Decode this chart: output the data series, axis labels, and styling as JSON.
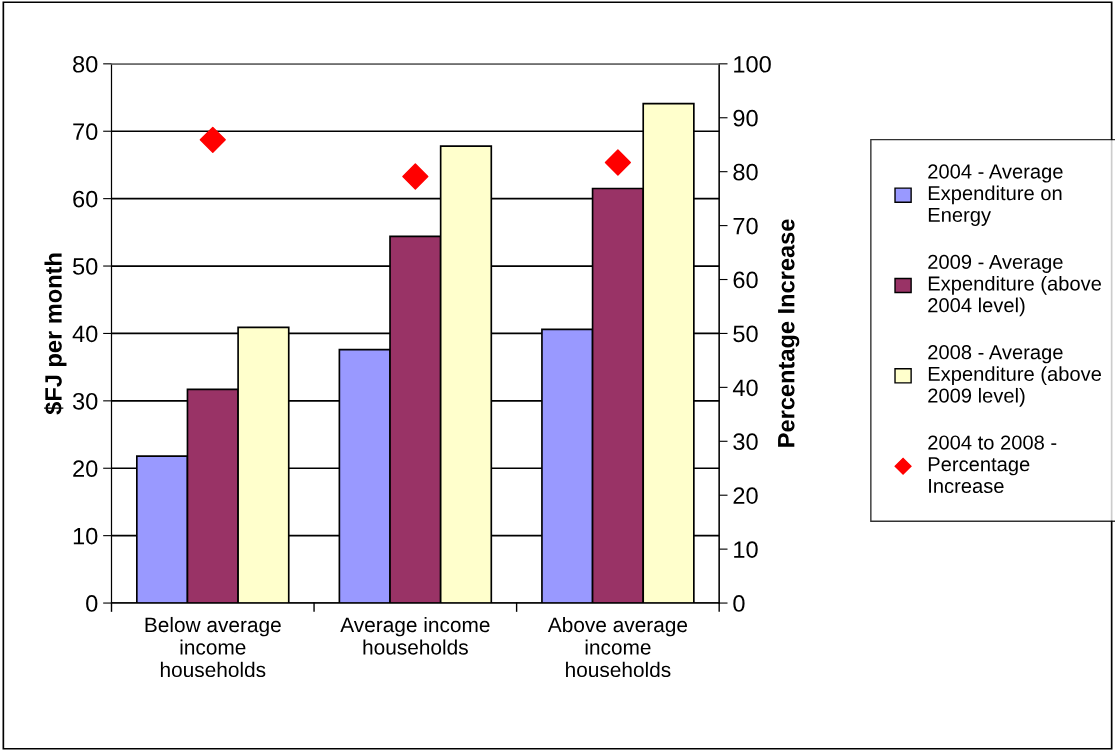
{
  "chart_data": {
    "type": "bar",
    "ylabel": "$FJ per month",
    "y2label": "Percentage Increase",
    "categories": [
      "Below average income households",
      "Average income households",
      "Above average income households"
    ],
    "series": [
      {
        "name": "2004 - Average Expenditure on Energy",
        "color": "#9999ff",
        "values": [
          21.8,
          37.6,
          40.6
        ]
      },
      {
        "name": "2009 - Average Expenditure (above 2004 level)",
        "color": "#993366",
        "values": [
          31.7,
          54.4,
          61.5
        ]
      },
      {
        "name": "2008 - Average Expenditure (above 2009 level)",
        "color": "#ffffcc",
        "values": [
          40.9,
          67.8,
          74.1
        ]
      },
      {
        "name": "2004 to 2008 - Percentage Increase",
        "color": "#ff0000",
        "type": "scatter",
        "axis": "y2",
        "values": [
          85.9,
          79.1,
          81.7
        ]
      }
    ],
    "ylim": [
      0,
      80
    ],
    "yticks": [
      0,
      10,
      20,
      30,
      40,
      50,
      60,
      70,
      80
    ],
    "y2lim": [
      0,
      100
    ],
    "y2ticks": [
      0,
      10,
      20,
      30,
      40,
      50,
      60,
      70,
      80,
      90,
      100
    ],
    "grid": "y",
    "legend": "right",
    "marker": "diamond"
  }
}
